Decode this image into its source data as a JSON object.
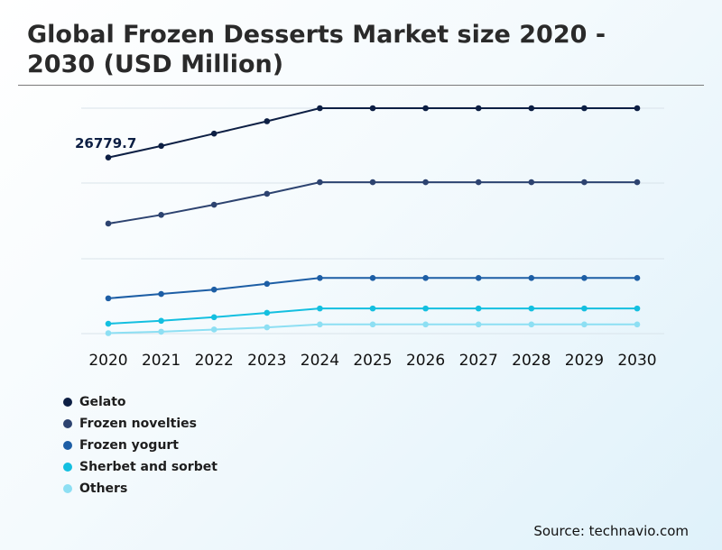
{
  "chart_data": {
    "type": "line",
    "title": "Global Frozen Desserts Market size 2020 - 2030 (USD Million)",
    "x": [
      "2020",
      "2021",
      "2022",
      "2023",
      "2024",
      "2025",
      "2026",
      "2027",
      "2028",
      "2029",
      "2030"
    ],
    "grid": true,
    "legend_position": "bottom-left",
    "annotation": "26779.7",
    "series": [
      {
        "name": "Gelato",
        "color": "#0d1f44",
        "values": [
          27.0,
          28.6,
          30.3,
          32.0,
          33.8,
          33.8,
          33.8,
          33.8,
          33.8,
          33.8,
          33.8
        ]
      },
      {
        "name": "Frozen novelties",
        "color": "#2d4370",
        "values": [
          17.9,
          19.1,
          20.5,
          22.0,
          23.6,
          23.6,
          23.6,
          23.6,
          23.6,
          23.6,
          23.6
        ]
      },
      {
        "name": "Frozen yogurt",
        "color": "#1d5ea5",
        "values": [
          7.6,
          8.2,
          8.8,
          9.6,
          10.4,
          10.4,
          10.4,
          10.4,
          10.4,
          10.4,
          10.4
        ]
      },
      {
        "name": "Sherbet and sorbet",
        "color": "#13bfe0",
        "values": [
          4.1,
          4.5,
          5.0,
          5.6,
          6.2,
          6.2,
          6.2,
          6.2,
          6.2,
          6.2,
          6.2
        ]
      },
      {
        "name": "Others",
        "color": "#8ddff3",
        "values": [
          2.8,
          3.0,
          3.3,
          3.6,
          4.0,
          4.0,
          4.0,
          4.0,
          4.0,
          4.0,
          4.0
        ]
      }
    ],
    "ylim": [
      2.8,
      33.8
    ]
  },
  "source": "Source: technavio.com"
}
